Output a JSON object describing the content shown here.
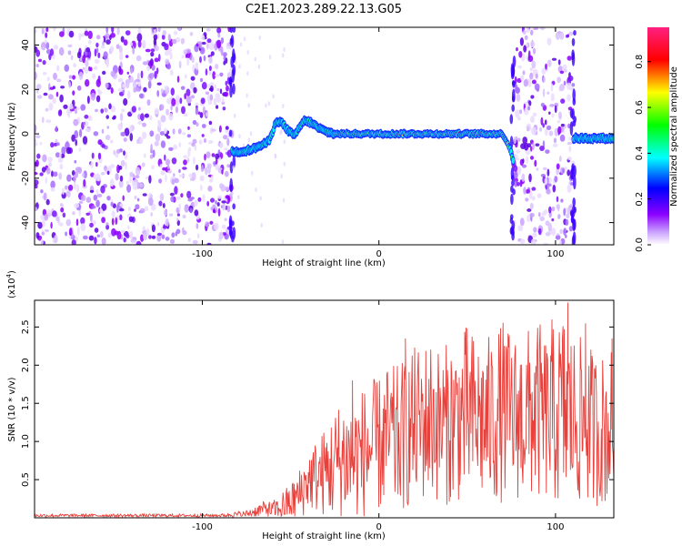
{
  "title": "C2E1.2023.289.22.13.G05",
  "chart_data": [
    {
      "type": "heatmap",
      "xlabel": "Height of straight line (km)",
      "ylabel": "Frequency (Hz)",
      "xlim": [
        -195,
        133
      ],
      "ylim": [
        -50,
        48
      ],
      "xticks": [
        -100,
        0,
        100
      ],
      "yticks": [
        -40,
        -20,
        0,
        20,
        40
      ],
      "colorbar": {
        "label": "Normalized spectral amplitude",
        "range": [
          0.0,
          0.95
        ],
        "ticks": [
          "0.0",
          "0.2",
          "0.4",
          "0.6",
          "0.8"
        ],
        "colormap": [
          "#ffffff",
          "#8b00ff",
          "#0000ff",
          "#00ffff",
          "#00ff00",
          "#ffff00",
          "#ff0000",
          "#ff0080"
        ]
      },
      "noise_regions_km": [
        [
          -195,
          -83
        ],
        [
          76,
          110
        ]
      ],
      "signal_track": {
        "x": [
          -83,
          -78,
          -72,
          -66,
          -62,
          -58,
          -55,
          -52,
          -48,
          -45,
          -42,
          -38,
          -35,
          -30,
          -25,
          -20,
          -10,
          0,
          10,
          20,
          30,
          40,
          50,
          60,
          70,
          74,
          76,
          110,
          112,
          120,
          133
        ],
        "y": [
          -8,
          -8,
          -7,
          -5,
          -3,
          6,
          5,
          2,
          -1,
          3,
          6,
          5,
          3,
          1,
          0,
          0,
          0,
          0,
          0,
          0,
          0,
          0,
          0,
          0,
          0,
          -6,
          -12,
          -2,
          -2,
          -2,
          -2
        ]
      }
    },
    {
      "type": "line",
      "xlabel": "Height of straight line (km)",
      "ylabel": "SNR (10 * v/v)",
      "multiplier": "(x10",
      "multiplier_exp": "4",
      "multiplier_close": ")",
      "xlim": [
        -195,
        133
      ],
      "ylim": [
        0,
        2.85
      ],
      "xticks": [
        -100,
        0,
        100
      ],
      "yticks": [
        0.5,
        1.0,
        1.5,
        2.0,
        2.5
      ],
      "series": [
        {
          "color": "#e8413c",
          "x": [
            -195,
            -160,
            -120,
            -90,
            -75,
            -65,
            -60,
            -55,
            -50,
            -45,
            -40,
            -35,
            -30,
            -25,
            -20,
            -15,
            -10,
            -5,
            0,
            5,
            10,
            15,
            20,
            25,
            30,
            35,
            40,
            45,
            50,
            55,
            60,
            65,
            70,
            75,
            80,
            85,
            90,
            95,
            100,
            105,
            110,
            115,
            120,
            125,
            133
          ],
          "y": [
            0.03,
            0.03,
            0.03,
            0.03,
            0.05,
            0.12,
            0.1,
            0.15,
            0.2,
            0.3,
            0.5,
            0.55,
            0.6,
            0.7,
            0.8,
            0.75,
            0.85,
            0.9,
            0.95,
            1.05,
            1.0,
            1.1,
            1.2,
            1.25,
            1.3,
            1.2,
            1.25,
            1.3,
            1.35,
            1.3,
            1.25,
            1.3,
            1.4,
            1.35,
            1.3,
            1.35,
            1.4,
            1.3,
            1.35,
            1.4,
            1.3,
            1.25,
            1.2,
            1.15,
            1.2
          ],
          "amplitude": [
            0.02,
            0.02,
            0.02,
            0.02,
            0.05,
            0.1,
            0.12,
            0.2,
            0.25,
            0.35,
            0.4,
            0.5,
            0.6,
            0.75,
            0.8,
            0.8,
            0.85,
            0.9,
            0.9,
            0.95,
            1.0,
            1.0,
            1.05,
            1.05,
            1.1,
            1.0,
            1.1,
            1.1,
            1.2,
            1.1,
            1.1,
            1.15,
            1.2,
            1.1,
            1.1,
            1.15,
            1.2,
            1.1,
            1.2,
            1.35,
            1.15,
            1.1,
            1.05,
            1.0,
            1.05
          ]
        }
      ],
      "peaks": [
        {
          "x": 107,
          "y": 2.82
        },
        {
          "x": 98,
          "y": 2.6
        },
        {
          "x": 117,
          "y": 2.55
        },
        {
          "x": 15,
          "y": 2.35
        },
        {
          "x": -15,
          "y": 1.8
        },
        {
          "x": 132,
          "y": 2.35
        }
      ]
    }
  ]
}
